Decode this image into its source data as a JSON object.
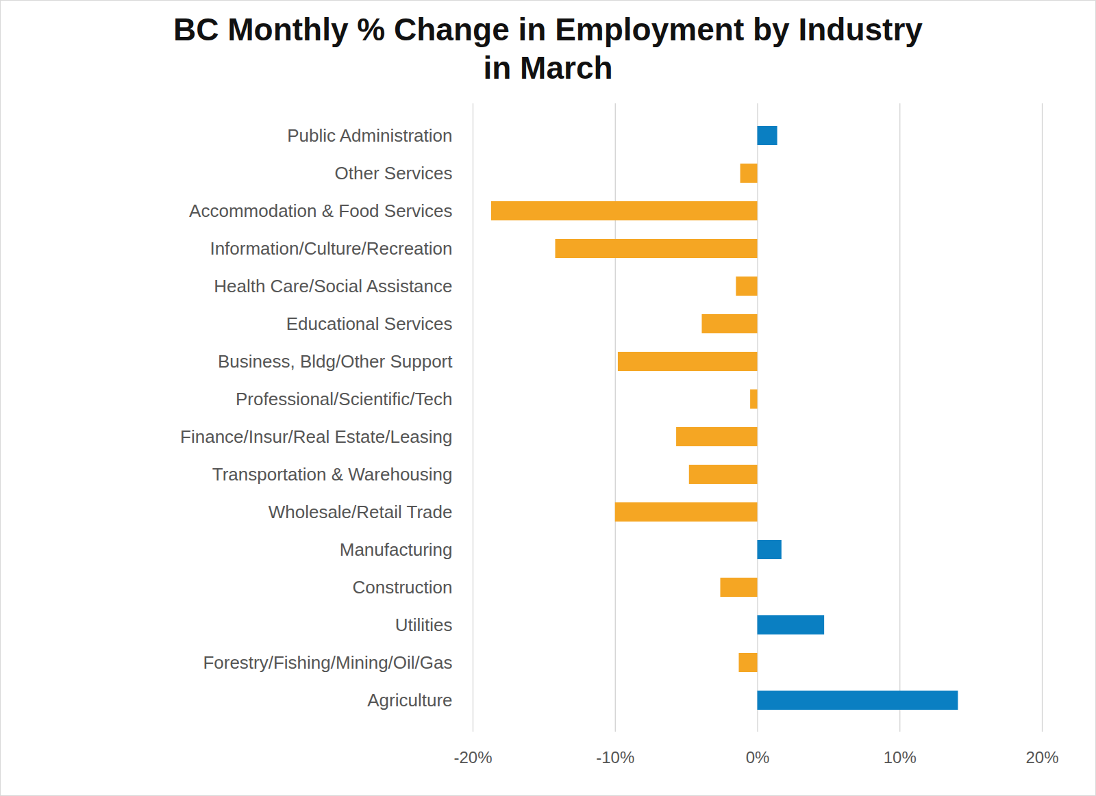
{
  "chart_data": {
    "type": "bar",
    "orientation": "horizontal",
    "title": "BC Monthly % Change in Employment by Industry in March",
    "categories": [
      "Public Administration",
      "Other Services",
      "Accommodation & Food Services",
      "Information/Culture/Recreation",
      "Health Care/Social Assistance",
      "Educational Services",
      "Business, Bldg/Other Support",
      "Professional/Scientific/Tech",
      "Finance/Insur/Real Estate/Leasing",
      "Transportation & Warehousing",
      "Wholesale/Retail Trade",
      "Manufacturing",
      "Construction",
      "Utilities",
      "Forestry/Fishing/Mining/Oil/Gas",
      "Agriculture"
    ],
    "values": [
      1.4,
      -1.2,
      -18.7,
      -14.2,
      -1.5,
      -3.9,
      -9.8,
      -0.5,
      -5.7,
      -4.8,
      -10.0,
      1.7,
      -2.6,
      4.7,
      -1.3,
      14.1
    ],
    "colors": [
      "#0a7fc2",
      "#f5a623",
      "#f5a623",
      "#f5a623",
      "#f5a623",
      "#f5a623",
      "#f5a623",
      "#f5a623",
      "#f5a623",
      "#f5a623",
      "#f5a623",
      "#0a7fc2",
      "#f5a623",
      "#0a7fc2",
      "#f5a623",
      "#0a7fc2"
    ],
    "xlim": [
      -20,
      20
    ],
    "xticks": [
      {
        "value": -20,
        "label": "-20%"
      },
      {
        "value": -10,
        "label": "-10%"
      },
      {
        "value": 0,
        "label": "0%"
      },
      {
        "value": 10,
        "label": "10%"
      },
      {
        "value": 20,
        "label": "20%"
      }
    ],
    "grid": true
  }
}
